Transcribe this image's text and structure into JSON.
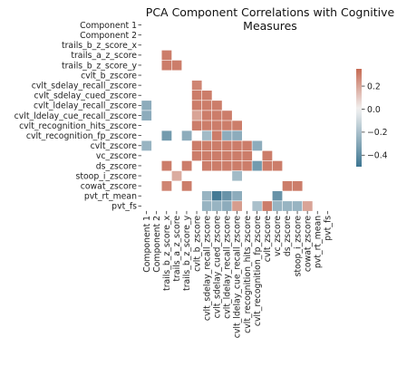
{
  "chart_data": {
    "type": "heatmap",
    "title": "PCA Component Correlations with Cognitive Measures",
    "labels": [
      "Component 1",
      "Component 2",
      "trails_b_z_score_x",
      "trails_a_z_score",
      "trails_b_z_score_y",
      "cvlt_b_zscore",
      "cvlt_sdelay_recall_zscore",
      "cvlt_sdelay_cued_zscore",
      "cvlt_ldelay_recall_zscore",
      "cvlt_ldelay_cue_recall_zscore",
      "cvlt_recognition_hits_zscore",
      "cvlt_recognition_fp_zscore",
      "cvlt_zscore",
      "vc_zscore",
      "ds_zscore",
      "stoop_i_zscore",
      "cowat_zscore",
      "pvt_rt_mean",
      "pvt_fs"
    ],
    "mask": "upper triangle and diagonal hidden",
    "colorbar": {
      "min": -0.5,
      "max": 0.35,
      "ticks": [
        0.2,
        0.0,
        -0.2,
        -0.4
      ],
      "tick_labels": [
        "0.2",
        "0.0",
        "−0.2",
        "−0.4"
      ]
    },
    "colors": {
      "negative": "#3d7591",
      "neutral": "#f2f2f2",
      "positive": "#c66a53"
    },
    "values": [
      [
        0,
        0,
        0,
        0,
        0,
        0,
        0,
        0,
        0,
        0,
        0,
        0,
        0,
        0,
        0,
        0,
        0,
        0,
        0
      ],
      [
        0,
        0,
        0,
        0,
        0,
        0,
        0,
        0,
        0,
        0,
        0,
        0,
        0,
        0,
        0,
        0,
        0,
        0,
        0
      ],
      [
        0,
        0,
        0,
        0,
        0,
        0,
        0,
        0,
        0,
        0,
        0,
        0,
        0,
        0,
        0,
        0,
        0,
        0,
        0
      ],
      [
        0,
        0,
        0.3,
        0,
        0,
        0,
        0,
        0,
        0,
        0,
        0,
        0,
        0,
        0,
        0,
        0,
        0,
        0,
        0
      ],
      [
        0,
        0,
        0.3,
        0.3,
        0,
        0,
        0,
        0,
        0,
        0,
        0,
        0,
        0,
        0,
        0,
        0,
        0,
        0,
        0
      ],
      [
        0,
        0,
        0,
        0,
        0,
        0,
        0,
        0,
        0,
        0,
        0,
        0,
        0,
        0,
        0,
        0,
        0,
        0,
        0
      ],
      [
        0,
        0,
        0,
        0,
        0,
        0.28,
        0,
        0,
        0,
        0,
        0,
        0,
        0,
        0,
        0,
        0,
        0,
        0,
        0
      ],
      [
        0,
        0,
        0,
        0,
        0,
        0.3,
        0.3,
        0,
        0,
        0,
        0,
        0,
        0,
        0,
        0,
        0,
        0,
        0,
        0
      ],
      [
        -0.28,
        0,
        0,
        0,
        0,
        0.3,
        0.3,
        0.3,
        0,
        0,
        0,
        0,
        0,
        0,
        0,
        0,
        0,
        0,
        0
      ],
      [
        -0.28,
        0,
        0,
        0,
        0,
        0.2,
        0.3,
        0.3,
        0.3,
        0,
        0,
        0,
        0,
        0,
        0,
        0,
        0,
        0,
        0
      ],
      [
        0,
        0,
        0,
        0,
        0,
        0.3,
        0.3,
        0.3,
        0.3,
        0.3,
        0,
        0,
        0,
        0,
        0,
        0,
        0,
        0,
        0
      ],
      [
        0,
        0,
        -0.35,
        0,
        -0.28,
        0,
        -0.22,
        0.3,
        -0.28,
        -0.28,
        0,
        0,
        0,
        0,
        0,
        0,
        0,
        0,
        0
      ],
      [
        -0.25,
        0,
        0,
        0,
        0,
        0.3,
        0.3,
        0.3,
        0.3,
        0.3,
        0.3,
        -0.28,
        0,
        0,
        0,
        0,
        0,
        0,
        0
      ],
      [
        0,
        0,
        0,
        0,
        0,
        0.3,
        0.3,
        0.3,
        0.3,
        0.3,
        0.3,
        0,
        0.3,
        0,
        0,
        0,
        0,
        0,
        0
      ],
      [
        0,
        0,
        0.3,
        0,
        0.3,
        0,
        0.3,
        0.3,
        0.3,
        0.3,
        0.3,
        -0.35,
        0.3,
        0.3,
        0,
        0,
        0,
        0,
        0
      ],
      [
        0,
        0,
        0,
        0.18,
        0,
        0,
        0,
        0,
        0,
        -0.22,
        0,
        0,
        0,
        0,
        0,
        0,
        0,
        0,
        0
      ],
      [
        0,
        0,
        0.28,
        0,
        0.3,
        0,
        0,
        0,
        0,
        0,
        0,
        0,
        0,
        0,
        0.3,
        0.3,
        0,
        0,
        0
      ],
      [
        0,
        0,
        0,
        0,
        0,
        0,
        -0.25,
        -0.48,
        -0.38,
        -0.28,
        0,
        0,
        0,
        -0.38,
        0,
        0,
        0,
        0,
        0
      ],
      [
        0,
        0,
        0,
        0,
        0,
        0,
        -0.25,
        -0.25,
        -0.28,
        0.22,
        0,
        -0.2,
        0.3,
        -0.25,
        -0.25,
        -0.25,
        0.2,
        0,
        0
      ]
    ]
  }
}
